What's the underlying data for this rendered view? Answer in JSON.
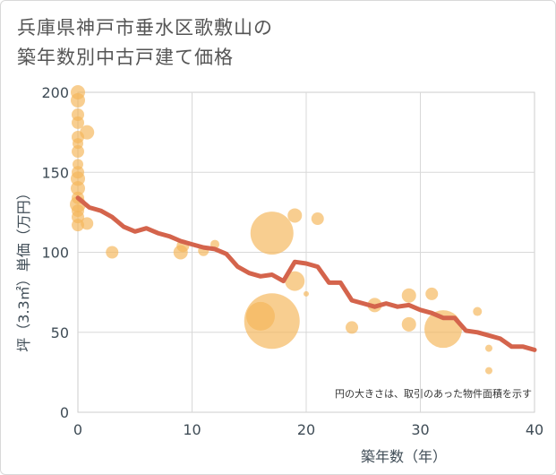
{
  "title_line1": "兵庫県神戸市垂水区歌敷山の",
  "title_line2": "築年数別中古戸建て価格",
  "chart_data": {
    "type": "scatter",
    "title": "兵庫県神戸市垂水区歌敷山の築年数別中古戸建て価格",
    "xlabel": "築年数（年）",
    "ylabel": "坪（3.3㎡）単価（万円）",
    "xlim": [
      0,
      40
    ],
    "ylim": [
      0,
      200
    ],
    "xticks": [
      0,
      10,
      20,
      30,
      40
    ],
    "yticks": [
      0,
      50,
      100,
      150,
      200
    ],
    "grid": true,
    "note": "円の大きさは、取引のあった物件面積を示す",
    "colors": {
      "bubble": "#f5b75c",
      "line": "#d4644c"
    },
    "bubbles": [
      {
        "x": 0,
        "y": 200,
        "s": 8
      },
      {
        "x": 0,
        "y": 195,
        "s": 8
      },
      {
        "x": 0,
        "y": 186,
        "s": 7
      },
      {
        "x": 0,
        "y": 181,
        "s": 7
      },
      {
        "x": 0,
        "y": 172,
        "s": 7
      },
      {
        "x": 0,
        "y": 168,
        "s": 6
      },
      {
        "x": 0,
        "y": 163,
        "s": 7
      },
      {
        "x": 0,
        "y": 155,
        "s": 6
      },
      {
        "x": 0,
        "y": 150,
        "s": 7
      },
      {
        "x": 0,
        "y": 146,
        "s": 8
      },
      {
        "x": 0,
        "y": 140,
        "s": 8
      },
      {
        "x": 0,
        "y": 134,
        "s": 7
      },
      {
        "x": 0,
        "y": 130,
        "s": 9
      },
      {
        "x": 0,
        "y": 126,
        "s": 7
      },
      {
        "x": 0,
        "y": 122,
        "s": 7
      },
      {
        "x": 0,
        "y": 117,
        "s": 7
      },
      {
        "x": 0.8,
        "y": 175,
        "s": 8
      },
      {
        "x": 0.8,
        "y": 118,
        "s": 7
      },
      {
        "x": 3,
        "y": 100,
        "s": 7
      },
      {
        "x": 9,
        "y": 100,
        "s": 8
      },
      {
        "x": 9.2,
        "y": 104,
        "s": 7
      },
      {
        "x": 11,
        "y": 101,
        "s": 6
      },
      {
        "x": 12,
        "y": 105,
        "s": 5
      },
      {
        "x": 16,
        "y": 60,
        "s": 16
      },
      {
        "x": 17,
        "y": 112,
        "s": 24
      },
      {
        "x": 17,
        "y": 57,
        "s": 31
      },
      {
        "x": 19,
        "y": 123,
        "s": 8
      },
      {
        "x": 19,
        "y": 82,
        "s": 11
      },
      {
        "x": 20,
        "y": 74,
        "s": 3
      },
      {
        "x": 21,
        "y": 121,
        "s": 7
      },
      {
        "x": 24,
        "y": 53,
        "s": 7
      },
      {
        "x": 26,
        "y": 67,
        "s": 8
      },
      {
        "x": 29,
        "y": 73,
        "s": 8
      },
      {
        "x": 29,
        "y": 55,
        "s": 8
      },
      {
        "x": 31,
        "y": 74,
        "s": 7
      },
      {
        "x": 32,
        "y": 52,
        "s": 21
      },
      {
        "x": 35,
        "y": 63,
        "s": 5
      },
      {
        "x": 36,
        "y": 40,
        "s": 4
      },
      {
        "x": 36,
        "y": 26,
        "s": 4
      }
    ],
    "line": {
      "x": [
        0,
        1,
        2,
        3,
        4,
        5,
        6,
        7,
        8,
        9,
        10,
        11,
        12,
        13,
        14,
        15,
        16,
        17,
        18,
        19,
        20,
        21,
        22,
        23,
        24,
        25,
        26,
        27,
        28,
        29,
        30,
        31,
        32,
        33,
        34,
        35,
        36,
        37,
        38,
        39,
        40
      ],
      "y": [
        134,
        128,
        126,
        122,
        116,
        113,
        115,
        112,
        110,
        107,
        105,
        103,
        102,
        99,
        91,
        87,
        85,
        86,
        82,
        94,
        93,
        91,
        81,
        81,
        70,
        68,
        66,
        68,
        66,
        67,
        64,
        62,
        59,
        59,
        51,
        50,
        48,
        46,
        41,
        41,
        39
      ]
    }
  }
}
